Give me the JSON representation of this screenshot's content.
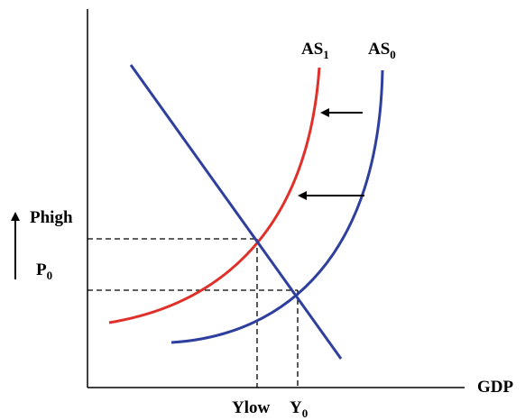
{
  "diagram": {
    "x_axis_label": "GDP",
    "labels": {
      "as1": {
        "base": "AS",
        "sub": "1"
      },
      "as0": {
        "base": "AS",
        "sub": "0"
      },
      "phigh": "Phigh",
      "p0": {
        "base": "P",
        "sub": "0"
      },
      "ylow": "Ylow",
      "y0": {
        "base": "Y",
        "sub": "0"
      }
    },
    "colors": {
      "as1_curve": "#e0302a",
      "as0_curve": "#2e3f9e",
      "ad_curve": "#2e3f9e",
      "axes": "#000000",
      "guides": "#000000"
    },
    "annotations": [
      "arrow-left-shift-upper",
      "arrow-left-shift-lower",
      "arrow-up-price"
    ]
  }
}
